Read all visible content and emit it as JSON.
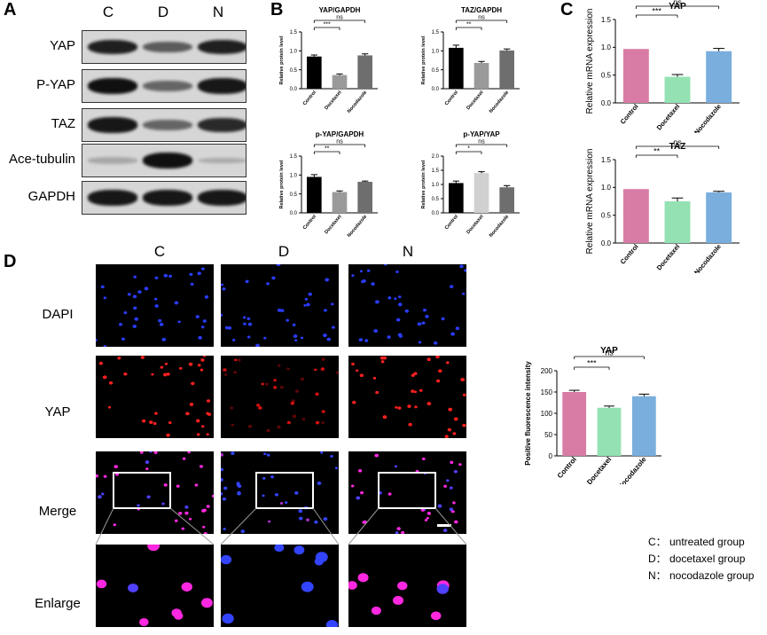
{
  "panels": {
    "A": "A",
    "B": "B",
    "C": "C",
    "D": "D"
  },
  "westernBlot": {
    "lanes": [
      "C",
      "D",
      "N"
    ],
    "rows": [
      {
        "label": "YAP",
        "intensity": [
          0.9,
          0.55,
          0.9
        ]
      },
      {
        "label": "P-YAP",
        "intensity": [
          1.0,
          0.5,
          0.95
        ]
      },
      {
        "label": "TAZ",
        "intensity": [
          0.95,
          0.5,
          0.85
        ]
      },
      {
        "label": "Ace-tubulin",
        "intensity": [
          0.1,
          1.0,
          0.08
        ]
      },
      {
        "label": "GAPDH",
        "intensity": [
          0.95,
          0.95,
          0.95
        ]
      }
    ]
  },
  "chart_data": [
    {
      "id": "b1",
      "type": "bar",
      "title": "YAP/GAPDH",
      "ylabel": "Relative protein level",
      "ylim": [
        0,
        1.5
      ],
      "yticks": [
        0.0,
        0.5,
        1.0,
        1.5
      ],
      "categories": [
        "Control",
        "Docetaxel",
        "Nocodazole"
      ],
      "values": [
        0.85,
        0.36,
        0.88
      ],
      "errors": [
        0.04,
        0.03,
        0.04
      ],
      "colors": [
        "#000000",
        "#9a9a9a",
        "#6e6e6e"
      ],
      "significance": [
        {
          "from": 0,
          "to": 1,
          "label": "***"
        },
        {
          "from": 0,
          "to": 2,
          "label": "ns"
        }
      ]
    },
    {
      "id": "b2",
      "type": "bar",
      "title": "TAZ/GAPDH",
      "ylabel": "Relative protein level",
      "ylim": [
        0,
        1.5
      ],
      "yticks": [
        0.0,
        0.5,
        1.0,
        1.5
      ],
      "categories": [
        "Control",
        "Docetaxel",
        "Nocodazole"
      ],
      "values": [
        1.08,
        0.68,
        1.01
      ],
      "errors": [
        0.07,
        0.04,
        0.04
      ],
      "colors": [
        "#000000",
        "#9a9a9a",
        "#6e6e6e"
      ],
      "significance": [
        {
          "from": 0,
          "to": 1,
          "label": "**"
        },
        {
          "from": 0,
          "to": 2,
          "label": "ns"
        }
      ]
    },
    {
      "id": "b3",
      "type": "bar",
      "title": "p-YAP/GAPDH",
      "ylabel": "Relative protein level",
      "ylim": [
        0,
        1.5
      ],
      "yticks": [
        0.0,
        0.5,
        1.0,
        1.5
      ],
      "categories": [
        "Control",
        "Docetaxel",
        "Nocodazole"
      ],
      "values": [
        0.95,
        0.55,
        0.82
      ],
      "errors": [
        0.06,
        0.03,
        0.02
      ],
      "colors": [
        "#000000",
        "#9a9a9a",
        "#6e6e6e"
      ],
      "significance": [
        {
          "from": 0,
          "to": 1,
          "label": "**"
        },
        {
          "from": 0,
          "to": 2,
          "label": "ns"
        }
      ]
    },
    {
      "id": "b4",
      "type": "bar",
      "title": "p-YAP/YAP",
      "ylabel": "Relative protein level",
      "ylim": [
        0,
        2.0
      ],
      "yticks": [
        0.0,
        0.5,
        1.0,
        1.5,
        2.0
      ],
      "categories": [
        "Control",
        "Docetaxel",
        "Nocodazole"
      ],
      "values": [
        1.05,
        1.4,
        0.9
      ],
      "errors": [
        0.07,
        0.05,
        0.06
      ],
      "colors": [
        "#000000",
        "#d0d0d0",
        "#6e6e6e"
      ],
      "significance": [
        {
          "from": 0,
          "to": 1,
          "label": "*"
        },
        {
          "from": 0,
          "to": 2,
          "label": "ns"
        }
      ]
    },
    {
      "id": "c1",
      "type": "bar",
      "title": "YAP",
      "ylabel": "Relative mRNA expression",
      "ylim": [
        0,
        1.5
      ],
      "yticks": [
        0.0,
        0.5,
        1.0,
        1.5
      ],
      "categories": [
        "Control",
        "Docetaxel",
        "Nocodazole"
      ],
      "values": [
        0.97,
        0.47,
        0.93
      ],
      "errors": [
        0,
        0.04,
        0.05
      ],
      "colors": [
        "#d87ca5",
        "#94e2b3",
        "#79aedd"
      ],
      "significance": [
        {
          "from": 0,
          "to": 1,
          "label": "***"
        },
        {
          "from": 0,
          "to": 2,
          "label": "ns"
        }
      ]
    },
    {
      "id": "c2",
      "type": "bar",
      "title": "TAZ",
      "ylabel": "Relative mRNA expression",
      "ylim": [
        0,
        1.5
      ],
      "yticks": [
        0.0,
        0.5,
        1.0,
        1.5
      ],
      "categories": [
        "Control",
        "Docetaxel",
        "Nocodazole"
      ],
      "values": [
        0.97,
        0.75,
        0.91
      ],
      "errors": [
        0,
        0.06,
        0.02
      ],
      "colors": [
        "#d87ca5",
        "#94e2b3",
        "#79aedd"
      ],
      "significance": [
        {
          "from": 0,
          "to": 1,
          "label": "**"
        },
        {
          "from": 0,
          "to": 2,
          "label": "ns"
        }
      ]
    },
    {
      "id": "d1",
      "type": "bar",
      "title": "YAP",
      "ylabel": "Positive fluorescence intensity",
      "ylim": [
        0,
        200
      ],
      "yticks": [
        0,
        50,
        100,
        150,
        200
      ],
      "categories": [
        "Control",
        "Docetaxel",
        "Nocodazole"
      ],
      "values": [
        150,
        113,
        140
      ],
      "errors": [
        4,
        4,
        5
      ],
      "colors": [
        "#d87ca5",
        "#94e2b3",
        "#79aedd"
      ],
      "significance": [
        {
          "from": 0,
          "to": 1,
          "label": "***"
        },
        {
          "from": 0,
          "to": 2,
          "label": "ns"
        }
      ]
    }
  ],
  "microscopy": {
    "columns": [
      "C",
      "D",
      "N"
    ],
    "rows": [
      "DAPI",
      "YAP",
      "Merge",
      "Enlarge"
    ]
  },
  "legend": [
    "C： untreated group",
    "D： docetaxel group",
    "N： nocodazole group"
  ]
}
